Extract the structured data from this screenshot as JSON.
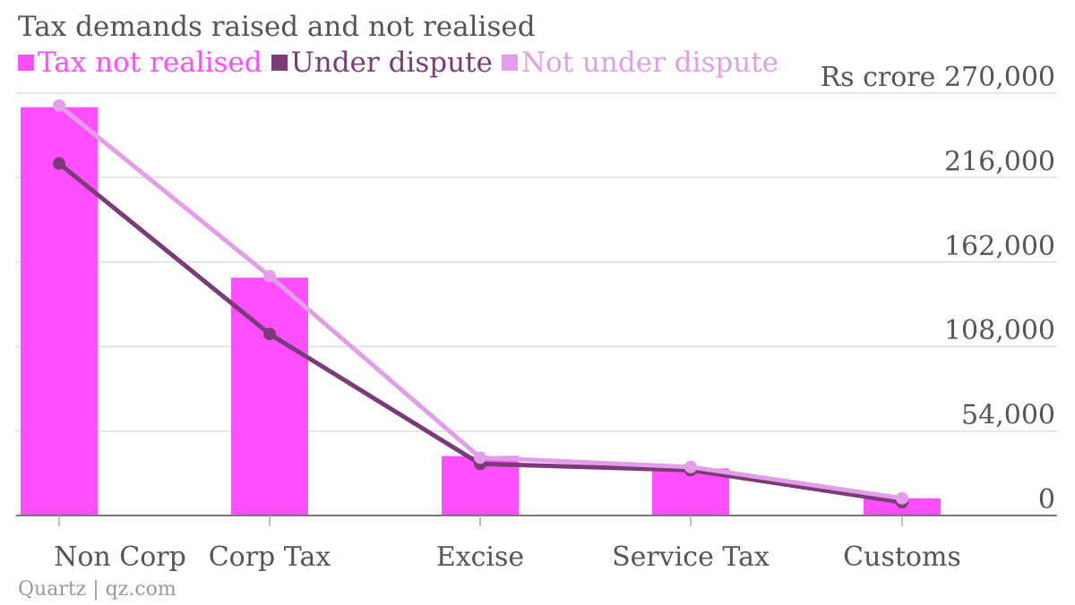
{
  "title": "Tax demands raised and not realised",
  "footer": "Quartz | qz.com",
  "colors": {
    "tax_not_realised": "#ff4fff",
    "under_dispute": "#7a3b78",
    "not_under_dispute": "#e29ee8",
    "axis_text": "#555555",
    "grid": "#dddddd"
  },
  "chart_data": {
    "type": "bar",
    "title": "Tax demands raised and not realised",
    "categories": [
      "Non Corp",
      "Corp Tax",
      "Excise",
      "Service Tax",
      "Customs"
    ],
    "y_unit": "Rs crore",
    "ylim": [
      0,
      270000
    ],
    "y_ticks": [
      0,
      54000,
      108000,
      162000,
      216000,
      270000
    ],
    "y_tick_labels": [
      "0",
      "54,000",
      "108,000",
      "162,000",
      "216,000",
      "270,000"
    ],
    "grid": true,
    "legend_position": "top-left",
    "series": [
      {
        "name": "Tax not realised",
        "kind": "bar",
        "values": [
          261000,
          152000,
          38000,
          30000,
          11000
        ]
      },
      {
        "name": "Under dispute",
        "kind": "line",
        "values": [
          225000,
          116000,
          33000,
          29000,
          8500
        ]
      },
      {
        "name": "Not under dispute",
        "kind": "line",
        "values": [
          262000,
          153000,
          37000,
          31000,
          11000
        ]
      }
    ]
  }
}
